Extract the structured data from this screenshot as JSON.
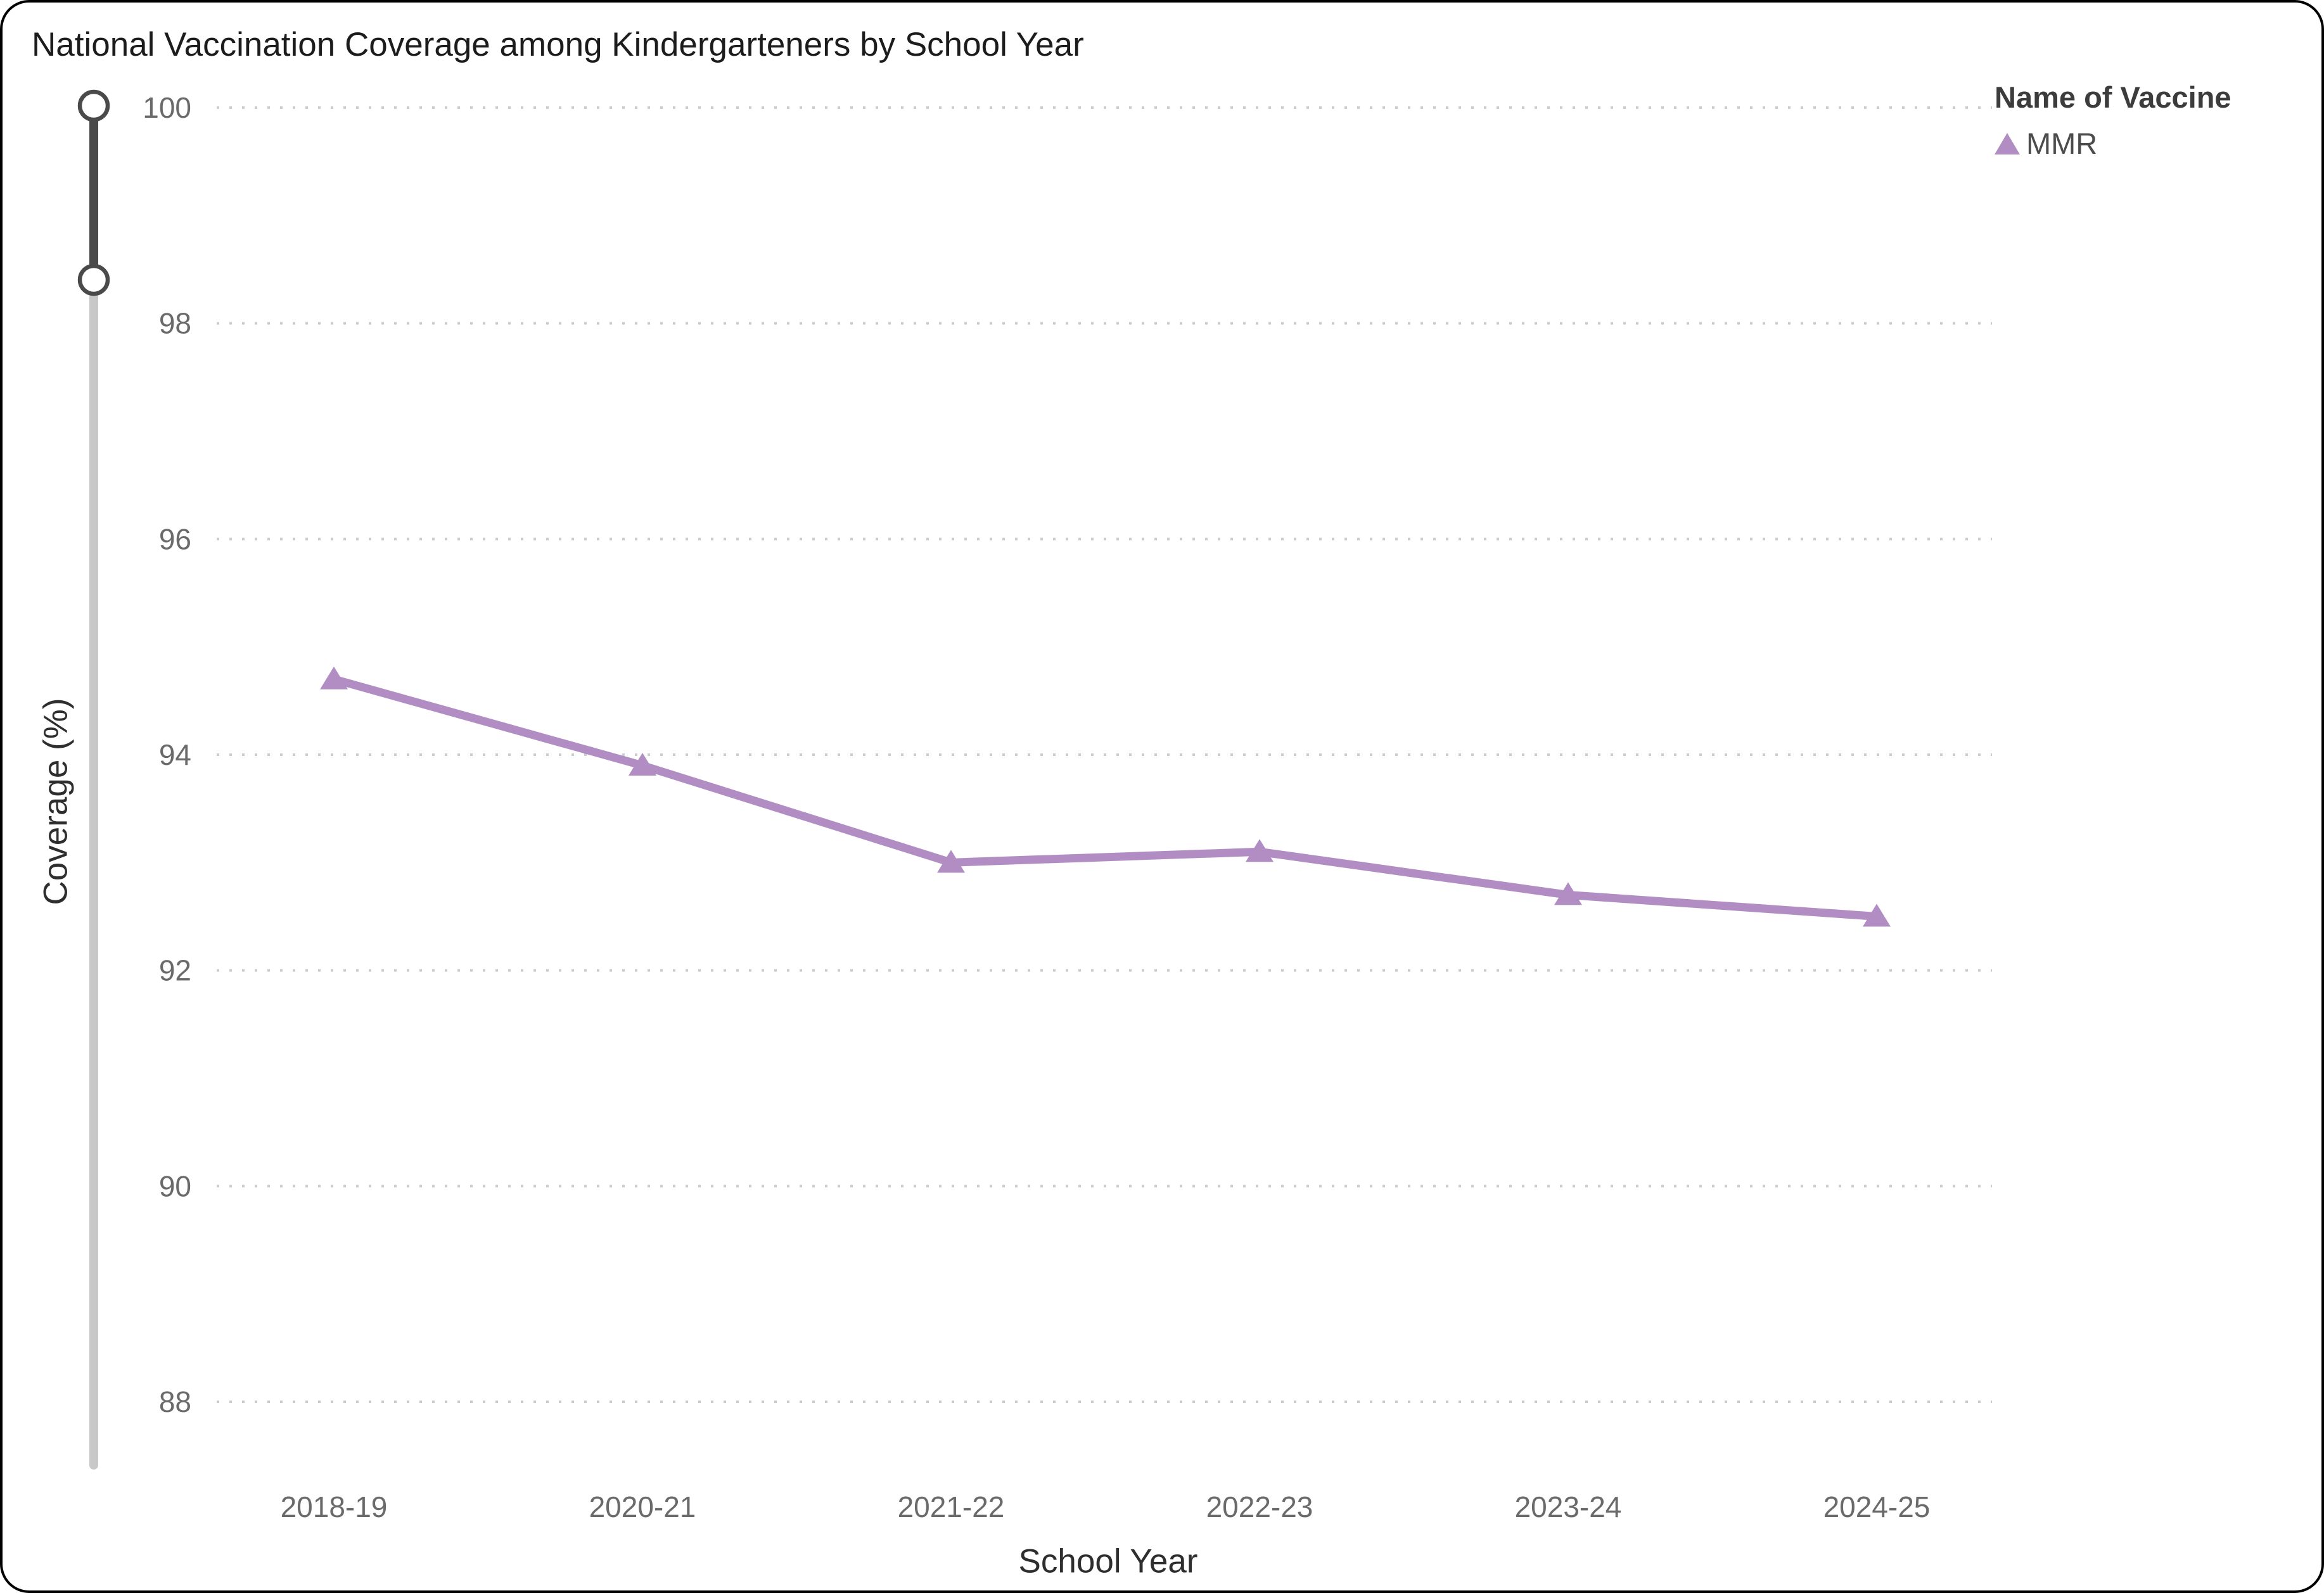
{
  "chart_data": {
    "type": "line",
    "title": "National Vaccination Coverage among Kindergarteners by School Year",
    "xlabel": "School Year",
    "ylabel": "Coverage (%)",
    "categories": [
      "2018-19",
      "2020-21",
      "2021-22",
      "2022-23",
      "2023-24",
      "2024-25"
    ],
    "series": [
      {
        "name": "MMR",
        "values": [
          94.7,
          93.9,
          93.0,
          93.1,
          92.7,
          92.5
        ],
        "color": "#b18dc4",
        "marker": "triangle"
      }
    ],
    "yticks": [
      100,
      98,
      96,
      94,
      92,
      90,
      88
    ],
    "ylim": [
      88,
      100
    ],
    "grid": "dotted-horizontal",
    "legend": {
      "title": "Name of Vaccine",
      "position": "top-right"
    }
  },
  "style_tokens": {
    "grid_color": "#cccccc",
    "tick_label_color": "#6a6a6a",
    "slider_dark": "#4a4a4a",
    "slider_track_light": "#c8c8c8"
  }
}
